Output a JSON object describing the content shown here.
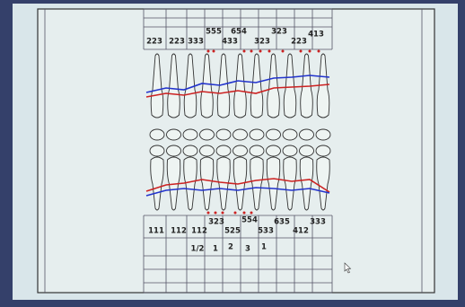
{
  "top_row": [
    "223",
    "223",
    "333",
    "555",
    "654",
    "433",
    "323",
    "323",
    "223",
    "413"
  ],
  "bottom_row": [
    "111",
    "112",
    "112",
    "323",
    "525",
    "554",
    "533",
    "635",
    "412",
    "333"
  ],
  "bottom_row_2": [
    "1/2",
    "1",
    "2",
    "3",
    "1"
  ]
}
